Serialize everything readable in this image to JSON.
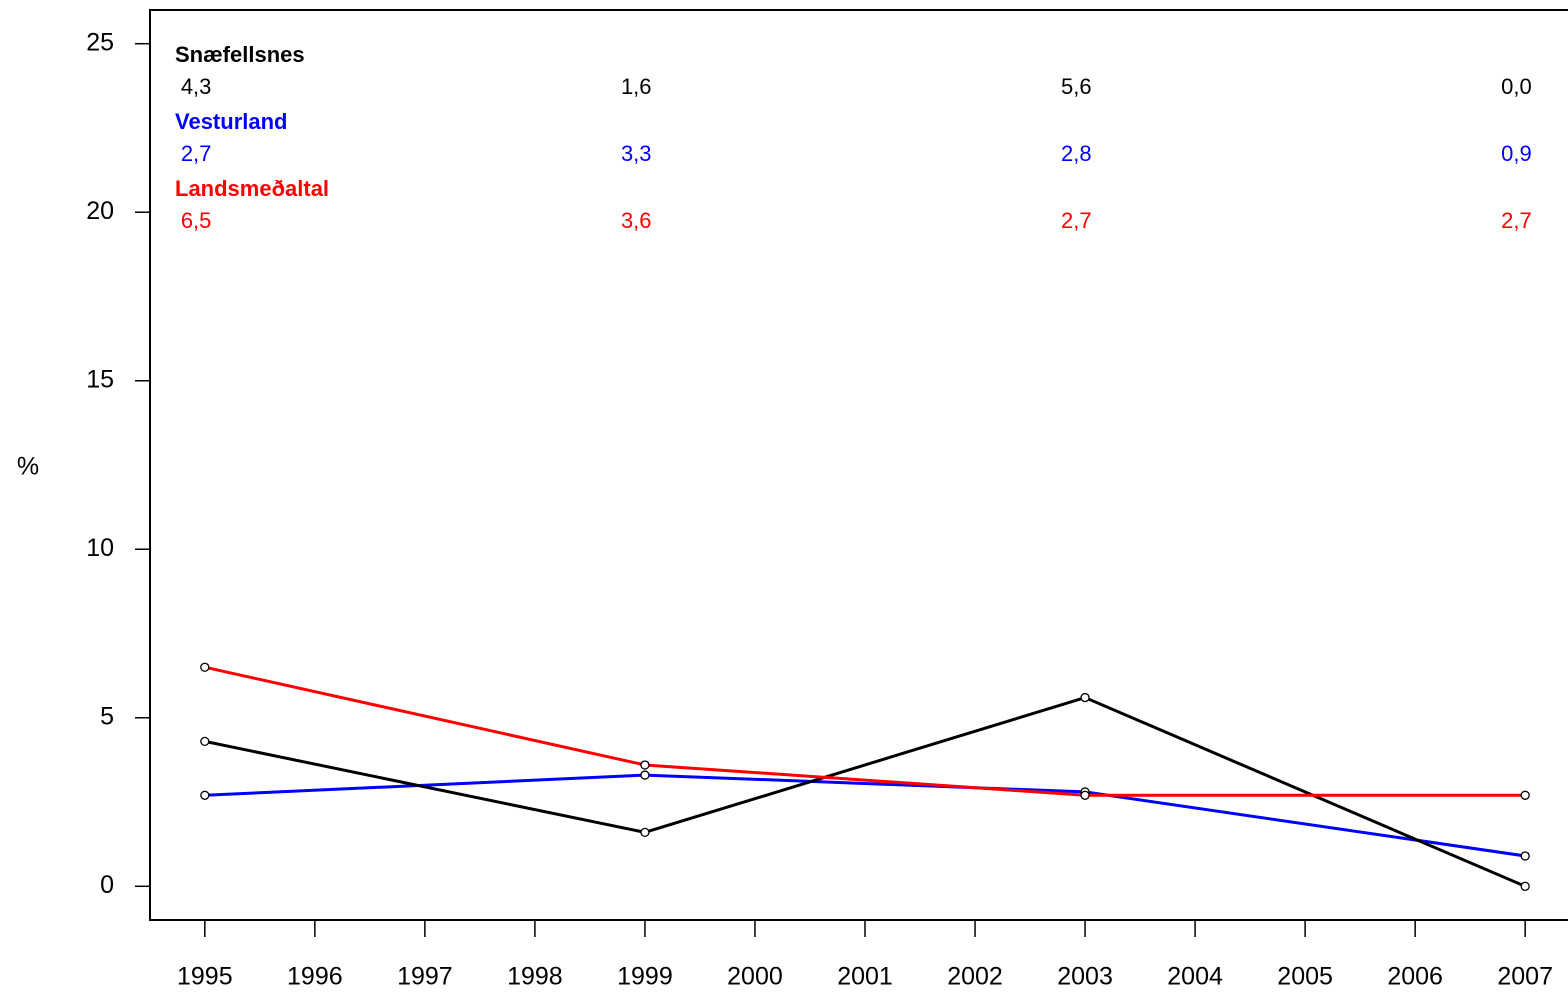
{
  "chart_data": {
    "type": "line",
    "y_label": "%",
    "x": [
      1995,
      1999,
      2003,
      2007
    ],
    "xlim": [
      1994.52,
      2007.48
    ],
    "xticks": [
      1995,
      1996,
      1997,
      1998,
      1999,
      2000,
      2001,
      2002,
      2003,
      2004,
      2005,
      2006,
      2007
    ],
    "ylim": [
      -1,
      26
    ],
    "yticks": [
      0,
      5,
      10,
      15,
      20,
      25
    ],
    "series": [
      {
        "name": "Snæfellsnes",
        "color": "#000000",
        "values": [
          4.3,
          1.6,
          5.6,
          0.0
        ],
        "value_labels": [
          "4,3",
          "1,6",
          "5,6",
          "0,0"
        ]
      },
      {
        "name": "Vesturland",
        "color": "#0000ff",
        "values": [
          2.7,
          3.3,
          2.8,
          0.9
        ],
        "value_labels": [
          "2,7",
          "3,3",
          "2,8",
          "0,9"
        ]
      },
      {
        "name": "Landsmeðaltal",
        "color": "#ff0000",
        "values": [
          6.5,
          3.6,
          2.7,
          2.7
        ],
        "value_labels": [
          "6,5",
          "3,6",
          "2,7",
          "2,7"
        ]
      }
    ]
  }
}
